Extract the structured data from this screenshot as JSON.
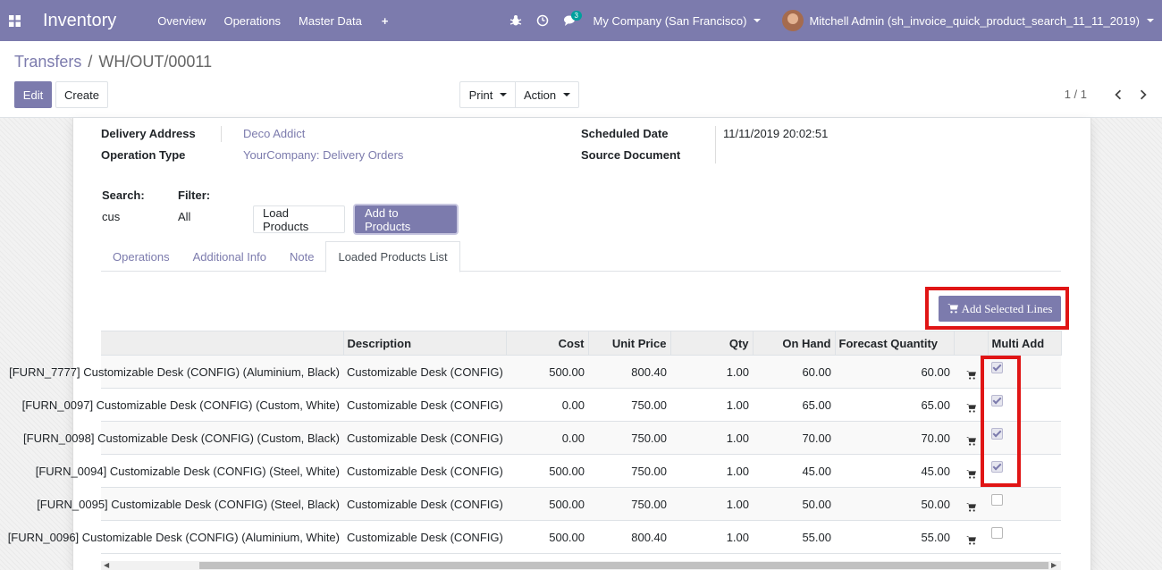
{
  "navbar": {
    "app_title": "Inventory",
    "menu": [
      "Overview",
      "Operations",
      "Master Data"
    ],
    "plus_label": "+",
    "messages_count": "3",
    "company": "My Company (San Francisco)",
    "user": "Mitchell Admin (sh_invoice_quick_product_search_11_11_2019)",
    "bg_color": "#7c7bad"
  },
  "breadcrumb": {
    "parent": "Transfers",
    "separator": "/",
    "current": "WH/OUT/00011"
  },
  "buttons": {
    "edit": "Edit",
    "create": "Create",
    "print": "Print",
    "action": "Action"
  },
  "pager": {
    "value": "1 / 1"
  },
  "form": {
    "delivery_address_label": "Delivery Address",
    "delivery_address": "Deco Addict",
    "operation_type_label": "Operation Type",
    "operation_type": "YourCompany: Delivery Orders",
    "scheduled_date_label": "Scheduled Date",
    "scheduled_date": "11/11/2019 20:02:51",
    "source_document_label": "Source Document",
    "search_label": "Search:",
    "search_value": "cus",
    "filter_label": "Filter:",
    "filter_value": "All",
    "load_products": "Load Products",
    "add_to_products": "Add to Products"
  },
  "tabs": [
    "Operations",
    "Additional Info",
    "Note",
    "Loaded Products List"
  ],
  "add_selected_lines": "Add Selected Lines",
  "table": {
    "columns": [
      "",
      "Description",
      "Cost",
      "Unit Price",
      "Qty",
      "On Hand",
      "Forecast Quantity",
      "",
      "Multi Add"
    ],
    "rows": [
      {
        "name": "[FURN_7777] Customizable Desk (CONFIG) (Aluminium, Black)",
        "description": "Customizable Desk (CONFIG)",
        "cost": "500.00",
        "unit_price": "800.40",
        "qty": "1.00",
        "on_hand": "60.00",
        "forecast": "60.00",
        "checked": true
      },
      {
        "name": "[FURN_0097] Customizable Desk (CONFIG) (Custom, White)",
        "description": "Customizable Desk (CONFIG)",
        "cost": "0.00",
        "unit_price": "750.00",
        "qty": "1.00",
        "on_hand": "65.00",
        "forecast": "65.00",
        "checked": true
      },
      {
        "name": "[FURN_0098] Customizable Desk (CONFIG) (Custom, Black)",
        "description": "Customizable Desk (CONFIG)",
        "cost": "0.00",
        "unit_price": "750.00",
        "qty": "1.00",
        "on_hand": "70.00",
        "forecast": "70.00",
        "checked": true
      },
      {
        "name": "[FURN_0094] Customizable Desk (CONFIG) (Steel, White)",
        "description": "Customizable Desk (CONFIG)",
        "cost": "500.00",
        "unit_price": "750.00",
        "qty": "1.00",
        "on_hand": "45.00",
        "forecast": "45.00",
        "checked": true
      },
      {
        "name": "[FURN_0095] Customizable Desk (CONFIG) (Steel, Black)",
        "description": "Customizable Desk (CONFIG)",
        "cost": "500.00",
        "unit_price": "750.00",
        "qty": "1.00",
        "on_hand": "50.00",
        "forecast": "50.00",
        "checked": false
      },
      {
        "name": "[FURN_0096] Customizable Desk (CONFIG) (Aluminium, White)",
        "description": "Customizable Desk (CONFIG)",
        "cost": "500.00",
        "unit_price": "800.40",
        "qty": "1.00",
        "on_hand": "55.00",
        "forecast": "55.00",
        "checked": false
      }
    ]
  },
  "colors": {
    "accent": "#7c7bad",
    "highlight": "#e01515"
  }
}
